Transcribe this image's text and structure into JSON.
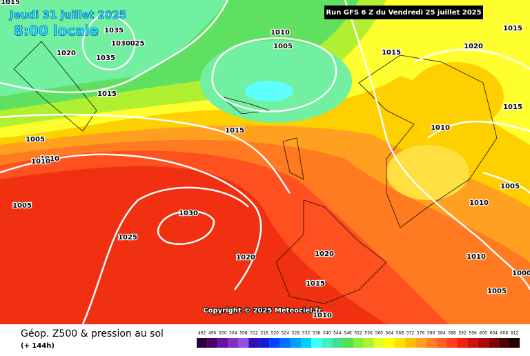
{
  "header": {
    "valid_date": "Jeudi 31 juillet 2025",
    "local_time": "8:00 locale",
    "run": "Run GFS 6 Z du Vendredi 25 juillet 2025"
  },
  "isobar_labels": [
    "1015",
    "1035",
    "1030",
    "025",
    "1035",
    "1020",
    "1015",
    "1010",
    "1005",
    "1015",
    "1020",
    "1015",
    "1015",
    "1010",
    "1015",
    "1005",
    "1010",
    "1010",
    "1005",
    "1005",
    "1010",
    "1030",
    "1025",
    "1020",
    "1020",
    "1010",
    "1000",
    "1005",
    "1015",
    "1010"
  ],
  "copyright": "Copyright © 2025 Meteociel.fr",
  "footer": {
    "title": "Géop. Z500 & pression au sol",
    "lead": "(+ 144h)"
  },
  "legend": {
    "values": [
      492,
      496,
      500,
      504,
      508,
      512,
      516,
      520,
      524,
      528,
      532,
      536,
      540,
      544,
      548,
      552,
      556,
      560,
      564,
      568,
      572,
      576,
      580,
      584,
      588,
      592,
      596,
      600,
      604,
      608,
      612
    ],
    "colors": [
      "#2a0038",
      "#4a0068",
      "#6a10a0",
      "#8030c0",
      "#9050e0",
      "#3010b0",
      "#1020d0",
      "#0040ff",
      "#0070ff",
      "#00a0ff",
      "#00d0ff",
      "#40ffff",
      "#40f0c0",
      "#40e090",
      "#50e050",
      "#80f040",
      "#b0f030",
      "#e0ff20",
      "#ffff00",
      "#ffe000",
      "#ffc000",
      "#ffa020",
      "#ff8020",
      "#ff6020",
      "#ff4020",
      "#f02010",
      "#d01010",
      "#b00808",
      "#800000",
      "#500000",
      "#200000"
    ]
  }
}
